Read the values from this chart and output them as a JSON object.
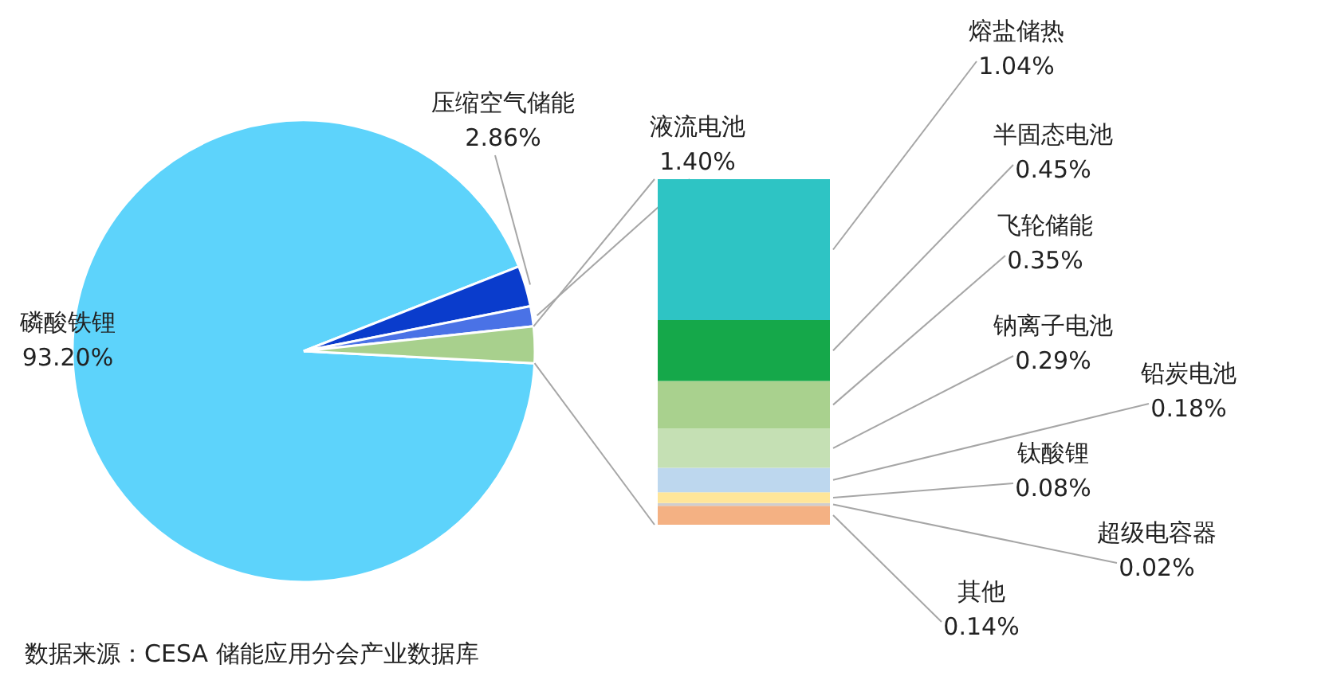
{
  "chart_data": [
    {
      "type": "pie",
      "categories": [
        "磷酸铁锂",
        "压缩空气储能",
        "液流电池",
        null
      ],
      "values": [
        93.2,
        2.86,
        1.4,
        2.55
      ],
      "colors": [
        "#5dd3fb",
        "#0a3ccc",
        "#4a72e6",
        "#a8d08d"
      ],
      "value_labels": [
        "93.20%",
        "2.86%",
        "1.40%",
        null
      ],
      "annotations": [
        "数据来源：CESA 储能应用分会产业数据库"
      ]
    },
    {
      "type": "bar",
      "stacked": true,
      "categories": [
        null
      ],
      "series": [
        {
          "name": "其他",
          "color": "#f4b183",
          "values": [
            0.14
          ],
          "value_labels": [
            "0.14%"
          ]
        },
        {
          "name": "超级电容器",
          "color": "#d0cece",
          "values": [
            0.02
          ],
          "value_labels": [
            "0.02%"
          ]
        },
        {
          "name": "钛酸锂",
          "color": "#ffe699",
          "values": [
            0.08
          ],
          "value_labels": [
            "0.08%"
          ]
        },
        {
          "name": "铅炭电池",
          "color": "#bdd7ee",
          "values": [
            0.18
          ],
          "value_labels": [
            "0.18%"
          ]
        },
        {
          "name": "钠离子电池",
          "color": "#c5e0b4",
          "values": [
            0.29
          ],
          "value_labels": [
            "0.29%"
          ]
        },
        {
          "name": "飞轮储能",
          "color": "#a9d18e",
          "values": [
            0.35
          ],
          "value_labels": [
            "0.35%"
          ]
        },
        {
          "name": "半固态电池",
          "color": "#15a84a",
          "values": [
            0.45
          ],
          "value_labels": [
            "0.45%"
          ]
        },
        {
          "name": "熔盐储热",
          "color": "#2ec4c4",
          "values": [
            1.04
          ],
          "value_labels": [
            "1.04%"
          ]
        }
      ]
    }
  ]
}
